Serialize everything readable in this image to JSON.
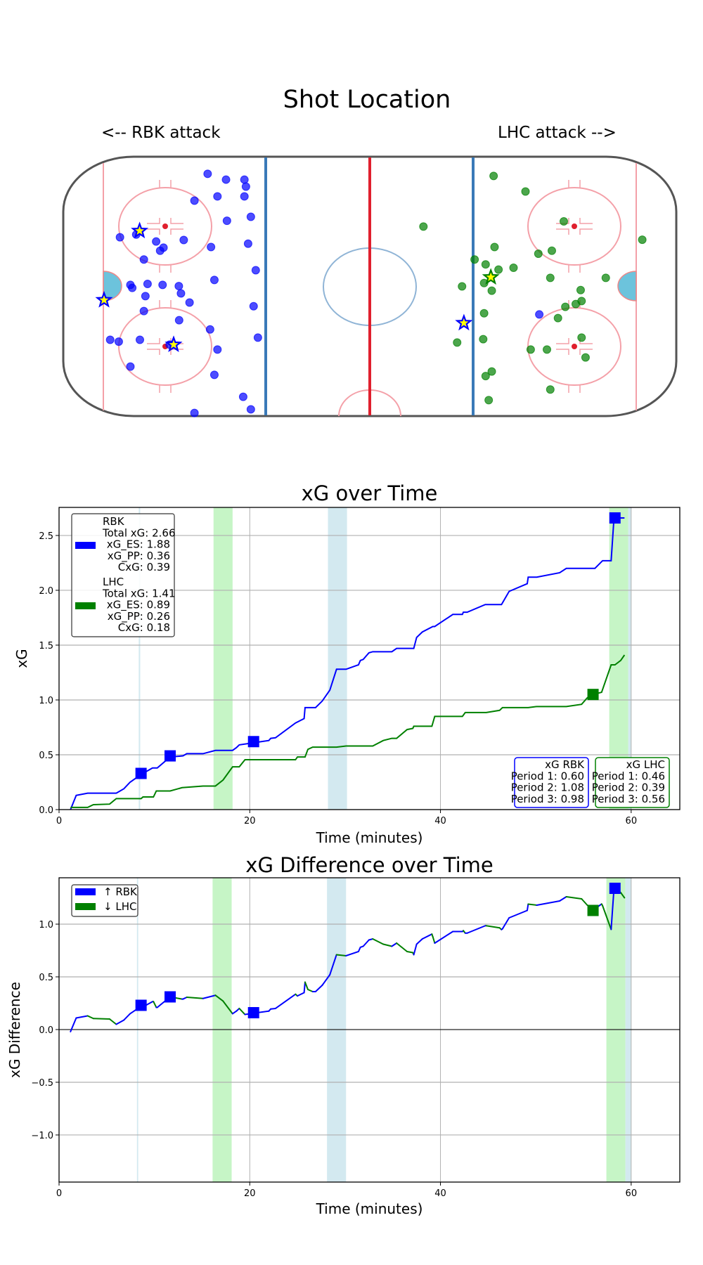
{
  "shot_map": {
    "title": "Shot Location",
    "left_label": "<-- RBK attack",
    "right_label": "LHC attack -->",
    "colors": {
      "RBK": "#0000ff",
      "LHC": "#008000",
      "goal_fill": "#ffff00"
    },
    "shots": {
      "RBK": [
        [
          -52.9,
          36.9
        ],
        [
          -46.9,
          35.0
        ],
        [
          -40.9,
          35.0
        ],
        [
          -40.4,
          32.7
        ],
        [
          -49.7,
          29.5
        ],
        [
          -40.9,
          29.5
        ],
        [
          -57.2,
          28.1
        ],
        [
          -38.8,
          22.8
        ],
        [
          -46.6,
          21.5
        ],
        [
          -81.5,
          16.1
        ],
        [
          -76.2,
          17.0
        ],
        [
          -69.7,
          14.7
        ],
        [
          -60.7,
          15.2
        ],
        [
          -67.3,
          12.7
        ],
        [
          -68.4,
          11.7
        ],
        [
          -51.8,
          12.9
        ],
        [
          -39.7,
          14.0
        ],
        [
          -73.7,
          8.8
        ],
        [
          -37.2,
          5.3
        ],
        [
          -50.7,
          2.1
        ],
        [
          -78.1,
          0.5
        ],
        [
          -77.5,
          -0.5
        ],
        [
          -72.5,
          0.8
        ],
        [
          -67.6,
          0.5
        ],
        [
          -62.3,
          0.1
        ],
        [
          -61.6,
          -2.3
        ],
        [
          -73.2,
          -3.2
        ],
        [
          -58.8,
          -5.3
        ],
        [
          -37.9,
          -6.5
        ],
        [
          -73.7,
          -8.1
        ],
        [
          -62.2,
          -11.1
        ],
        [
          -52.1,
          -14.1
        ],
        [
          -84.7,
          -17.5
        ],
        [
          -81.9,
          -18.1
        ],
        [
          -75.0,
          -17.5
        ],
        [
          -65.3,
          -19.1
        ],
        [
          -36.5,
          -16.8
        ],
        [
          -49.7,
          -20.7
        ],
        [
          -78.1,
          -26.3
        ],
        [
          -50.7,
          -29.0
        ],
        [
          -41.3,
          -36.2
        ],
        [
          -38.8,
          -40.3
        ],
        [
          -57.2,
          -41.5
        ],
        [
          55.3,
          -9.2
        ]
      ],
      "LHC": [
        [
          40.4,
          36.2
        ],
        [
          50.8,
          31.1
        ],
        [
          17.5,
          19.6
        ],
        [
          63.3,
          21.3
        ],
        [
          88.9,
          15.3
        ],
        [
          40.7,
          12.9
        ],
        [
          59.4,
          11.7
        ],
        [
          55.0,
          10.7
        ],
        [
          34.2,
          8.8
        ],
        [
          37.8,
          7.2
        ],
        [
          42.0,
          5.5
        ],
        [
          46.9,
          6.1
        ],
        [
          58.9,
          2.8
        ],
        [
          77.0,
          2.8
        ],
        [
          30.1,
          0.0
        ],
        [
          37.3,
          1.1
        ],
        [
          39.8,
          -1.4
        ],
        [
          68.8,
          -1.2
        ],
        [
          69.1,
          -4.8
        ],
        [
          67.2,
          -5.8
        ],
        [
          63.8,
          -6.7
        ],
        [
          61.4,
          -10.4
        ],
        [
          37.3,
          -8.8
        ],
        [
          37.0,
          -17.3
        ],
        [
          28.5,
          -18.4
        ],
        [
          69.1,
          -16.8
        ],
        [
          52.5,
          -20.7
        ],
        [
          57.8,
          -20.7
        ],
        [
          70.4,
          -23.3
        ],
        [
          39.8,
          -27.9
        ],
        [
          37.8,
          -29.4
        ],
        [
          58.9,
          -33.8
        ],
        [
          38.8,
          -37.3
        ]
      ]
    },
    "goals": {
      "RBK": [
        [
          -75.1,
          18.2
        ],
        [
          -86.7,
          -4.5
        ],
        [
          -64.0,
          -19.1
        ],
        [
          30.7,
          -12.0
        ]
      ],
      "LHC": [
        [
          39.5,
          3.0
        ]
      ]
    }
  },
  "chart_data": [
    {
      "type": "line",
      "title": "xG over Time",
      "xlabel": "Time (minutes)",
      "ylabel": "xG",
      "xlim": [
        0,
        65.1
      ],
      "ylim": [
        0,
        2.756
      ],
      "xticks": [
        0,
        20,
        40,
        60
      ],
      "xtick_labels": [
        "0",
        "20",
        "40",
        "60"
      ],
      "yticks": [
        0,
        0.5,
        1.0,
        1.5,
        2.0,
        2.5
      ],
      "ytick_labels": [
        "0.0",
        "0.5",
        "1.0",
        "1.5",
        "2.0",
        "2.5"
      ],
      "grid": true,
      "series": [
        {
          "name": "RBK",
          "color": "#0000ff",
          "points": [
            [
              1.2,
              0.0
            ],
            [
              1.8,
              0.13
            ],
            [
              3.0,
              0.15
            ],
            [
              6.0,
              0.15
            ],
            [
              6.8,
              0.19
            ],
            [
              7.45,
              0.25
            ],
            [
              8.6,
              0.32
            ],
            [
              9.8,
              0.38
            ],
            [
              10.3,
              0.38
            ],
            [
              11.65,
              0.48
            ],
            [
              13.0,
              0.49
            ],
            [
              13.4,
              0.51
            ],
            [
              15.1,
              0.51
            ],
            [
              16.4,
              0.54
            ],
            [
              18.2,
              0.54
            ],
            [
              18.6,
              0.565
            ],
            [
              18.9,
              0.59
            ],
            [
              20.4,
              0.61
            ],
            [
              22.0,
              0.63
            ],
            [
              22.2,
              0.65
            ],
            [
              22.7,
              0.655
            ],
            [
              24.8,
              0.79
            ],
            [
              25.7,
              0.83
            ],
            [
              25.8,
              0.93
            ],
            [
              26.9,
              0.93
            ],
            [
              27.6,
              0.99
            ],
            [
              28.4,
              1.09
            ],
            [
              29.1,
              1.28
            ],
            [
              30.1,
              1.28
            ],
            [
              31.4,
              1.32
            ],
            [
              31.6,
              1.36
            ],
            [
              31.9,
              1.37
            ],
            [
              32.5,
              1.43
            ],
            [
              32.9,
              1.44
            ],
            [
              34.9,
              1.44
            ],
            [
              35.4,
              1.47
            ],
            [
              37.2,
              1.47
            ],
            [
              37.5,
              1.57
            ],
            [
              38.1,
              1.62
            ],
            [
              39.2,
              1.67
            ],
            [
              39.4,
              1.67
            ],
            [
              41.3,
              1.78
            ],
            [
              42.3,
              1.78
            ],
            [
              42.4,
              1.8
            ],
            [
              42.8,
              1.8
            ],
            [
              44.7,
              1.87
            ],
            [
              46.4,
              1.87
            ],
            [
              47.2,
              1.99
            ],
            [
              49.1,
              2.06
            ],
            [
              49.2,
              2.12
            ],
            [
              50.1,
              2.12
            ],
            [
              52.5,
              2.16
            ],
            [
              53.2,
              2.2
            ],
            [
              56.2,
              2.2
            ],
            [
              57.0,
              2.27
            ],
            [
              57.9,
              2.27
            ],
            [
              58.2,
              2.66
            ],
            [
              59.3,
              2.66
            ]
          ]
        },
        {
          "name": "LHC",
          "color": "#008000",
          "points": [
            [
              1.2,
              0.02
            ],
            [
              3.0,
              0.02
            ],
            [
              3.6,
              0.045
            ],
            [
              5.3,
              0.05
            ],
            [
              6.0,
              0.1
            ],
            [
              8.6,
              0.1
            ],
            [
              8.8,
              0.115
            ],
            [
              9.9,
              0.115
            ],
            [
              10.2,
              0.17
            ],
            [
              11.65,
              0.17
            ],
            [
              12.9,
              0.2
            ],
            [
              15.1,
              0.215
            ],
            [
              16.4,
              0.215
            ],
            [
              17.2,
              0.27
            ],
            [
              18.2,
              0.39
            ],
            [
              18.9,
              0.39
            ],
            [
              19.5,
              0.455
            ],
            [
              24.8,
              0.455
            ],
            [
              25.0,
              0.48
            ],
            [
              25.8,
              0.48
            ],
            [
              26.1,
              0.55
            ],
            [
              26.6,
              0.57
            ],
            [
              29.1,
              0.57
            ],
            [
              30.1,
              0.58
            ],
            [
              32.9,
              0.58
            ],
            [
              34.0,
              0.63
            ],
            [
              34.9,
              0.65
            ],
            [
              35.4,
              0.65
            ],
            [
              36.5,
              0.73
            ],
            [
              37.1,
              0.74
            ],
            [
              37.2,
              0.76
            ],
            [
              39.1,
              0.76
            ],
            [
              39.4,
              0.85
            ],
            [
              42.3,
              0.85
            ],
            [
              42.6,
              0.885
            ],
            [
              44.8,
              0.885
            ],
            [
              46.2,
              0.905
            ],
            [
              46.5,
              0.93
            ],
            [
              49.2,
              0.93
            ],
            [
              50.1,
              0.94
            ],
            [
              53.2,
              0.94
            ],
            [
              54.8,
              0.96
            ],
            [
              55.4,
              1.02
            ],
            [
              56.0,
              1.05
            ],
            [
              56.9,
              1.07
            ],
            [
              57.9,
              1.32
            ],
            [
              58.3,
              1.32
            ],
            [
              58.9,
              1.36
            ],
            [
              59.3,
              1.41
            ]
          ]
        }
      ],
      "goals": [
        {
          "team": "RBK",
          "t": 8.6,
          "v": 0.33
        },
        {
          "team": "RBK",
          "t": 11.65,
          "v": 0.49
        },
        {
          "team": "RBK",
          "t": 20.4,
          "v": 0.62
        },
        {
          "team": "LHC",
          "t": 56.0,
          "v": 1.05
        },
        {
          "team": "RBK",
          "t": 58.3,
          "v": 2.66
        }
      ],
      "shaded_regions": [
        {
          "start": 8.36,
          "end": 8.51,
          "color": "#d3e9f0"
        },
        {
          "start": 16.2,
          "end": 18.2,
          "color": "#c6f5c6"
        },
        {
          "start": 28.2,
          "end": 30.2,
          "color": "#d3e9f0"
        },
        {
          "start": 57.7,
          "end": 59.7,
          "color": "#c6f5c6"
        },
        {
          "start": 59.7,
          "end": 60.0,
          "color": "#d3e9f0"
        }
      ],
      "legend": {
        "placement": "upper-left",
        "entries": [
          {
            "team": "RBK",
            "color": "#0000ff",
            "lines": [
              "RBK",
              "Total xG: 2.66",
              "xG_ES: 1.88",
              "xG_PP: 0.36",
              "CxG: 0.39"
            ]
          },
          {
            "team": "LHC",
            "color": "#008000",
            "lines": [
              "LHC",
              "Total xG: 1.41",
              "xG_ES: 0.89",
              "xG_PP: 0.26",
              "CxG: 0.18"
            ]
          }
        ]
      },
      "period_boxes": [
        {
          "color": "#0000ff",
          "lines": [
            "xG RBK",
            "Period 1: 0.60",
            "Period 2: 1.08",
            "Period 3: 0.98"
          ]
        },
        {
          "color": "#008000",
          "lines": [
            "xG LHC",
            "Period 1: 0.46",
            "Period 2: 0.39",
            "Period 3: 0.56"
          ]
        }
      ]
    },
    {
      "type": "line",
      "title": "xG Difference over Time",
      "xlabel": "Time (minutes)",
      "ylabel": "xG Difference",
      "xlim": [
        0,
        65.1
      ],
      "ylim": [
        -1.447,
        1.44
      ],
      "xticks": [
        0,
        20,
        40,
        60
      ],
      "xtick_labels": [
        "0",
        "20",
        "40",
        "60"
      ],
      "yticks": [
        -1.0,
        -0.5,
        0.0,
        0.5,
        1.0
      ],
      "ytick_labels": [
        "−1.0",
        "−0.5",
        "0.0",
        "0.5",
        "1.0"
      ],
      "grid": true,
      "zero_line": true,
      "segment_colors": {
        "up": "#0000ff",
        "down": "#008000"
      },
      "goals": [
        {
          "team": "RBK",
          "t": 8.6,
          "v": 0.23
        },
        {
          "team": "RBK",
          "t": 11.65,
          "v": 0.31
        },
        {
          "team": "RBK",
          "t": 20.4,
          "v": 0.16
        },
        {
          "team": "LHC",
          "t": 56.0,
          "v": 1.13
        },
        {
          "team": "RBK",
          "t": 58.3,
          "v": 1.34
        }
      ],
      "shaded_regions": [
        {
          "start": 8.17,
          "end": 8.3,
          "color": "#d3e9f0"
        },
        {
          "start": 16.1,
          "end": 18.1,
          "color": "#c6f5c6"
        },
        {
          "start": 28.1,
          "end": 30.1,
          "color": "#d3e9f0"
        },
        {
          "start": 57.4,
          "end": 59.4,
          "color": "#c6f5c6"
        },
        {
          "start": 59.4,
          "end": 60.0,
          "color": "#d3e9f0"
        }
      ],
      "legend": {
        "placement": "upper-left",
        "entries": [
          {
            "label": "↑ RBK",
            "color": "#0000ff"
          },
          {
            "label": "↓ LHC",
            "color": "#008000"
          }
        ]
      }
    }
  ]
}
